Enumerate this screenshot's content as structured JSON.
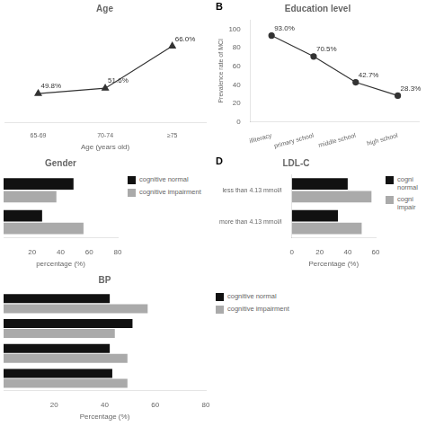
{
  "chart_data": [
    {
      "type": "line",
      "title": "Age",
      "xlabel": "Age (years old)",
      "categories": [
        "65-69",
        "70-74",
        "≥75"
      ],
      "values": [
        49.8,
        51.6,
        66.0
      ],
      "value_labels": [
        "49.8%",
        "51.6%",
        "66.0%"
      ],
      "color": "#333333",
      "marker": "triangle",
      "ylim": [
        40,
        75
      ],
      "tick_labels": "x",
      "data_labels": true,
      "grid": false
    },
    {
      "type": "line",
      "title": "Education level",
      "ylabel": "Prevalence rate of MCI",
      "annotations": [
        "B"
      ],
      "categories": [
        "illiteracy",
        "primary school",
        "middle school",
        "high school"
      ],
      "values": [
        93.0,
        70.5,
        42.7,
        28.3
      ],
      "value_labels": [
        "93.0%",
        "70.5%",
        "42.7%",
        "28.3%"
      ],
      "color": "#333333",
      "marker": "circle",
      "ylim": [
        0,
        110
      ],
      "yticks": [
        0,
        20,
        40,
        60,
        80,
        100
      ],
      "data_labels": true,
      "grid": false
    },
    {
      "type": "bar",
      "orientation": "horizontal",
      "title": "Gender",
      "xlabel": "percentage (%)",
      "categories": [
        null,
        null
      ],
      "series": [
        {
          "name": "cognitive normal",
          "color": "#111111",
          "values": [
            27.0,
            49.0
          ]
        },
        {
          "name": "cognitive impairment",
          "color": "#aaaaaa",
          "values": [
            56.0,
            37.0
          ]
        }
      ],
      "xlim": [
        0,
        80
      ],
      "xticks": [
        20,
        40,
        60,
        80
      ],
      "tick_labels": "x",
      "legend": "right",
      "grid": false
    },
    {
      "type": "bar",
      "orientation": "horizontal",
      "title": "LDL-C",
      "xlabel": "Percentage (%)",
      "annotations": [
        "D"
      ],
      "categories": [
        "more than 4.13 mmol/l",
        "less than 4.13 mmol/l"
      ],
      "series": [
        {
          "name": "cogni\nnormal",
          "color": "#111111",
          "values": [
            33.0,
            40.0
          ]
        },
        {
          "name": "cogni\nimpair",
          "color": "#aaaaaa",
          "values": [
            50.0,
            57.0
          ]
        }
      ],
      "xlim": [
        0,
        60
      ],
      "xticks": [
        0,
        20,
        40,
        60
      ],
      "legend": "right",
      "grid": false
    },
    {
      "type": "bar",
      "orientation": "horizontal",
      "title": "BP",
      "xlabel": "Percentage (%)",
      "categories": [
        null,
        null,
        null,
        null
      ],
      "series": [
        {
          "name": "cognitive normal",
          "color": "#111111",
          "values": [
            43.0,
            42.0,
            51.0,
            42.0
          ]
        },
        {
          "name": "cognitive impairment",
          "color": "#aaaaaa",
          "values": [
            49.0,
            49.0,
            44.0,
            57.0
          ]
        }
      ],
      "xlim": [
        0,
        80
      ],
      "xticks": [
        20,
        40,
        60,
        80
      ],
      "tick_labels": "x",
      "legend": "right",
      "grid": false
    }
  ]
}
